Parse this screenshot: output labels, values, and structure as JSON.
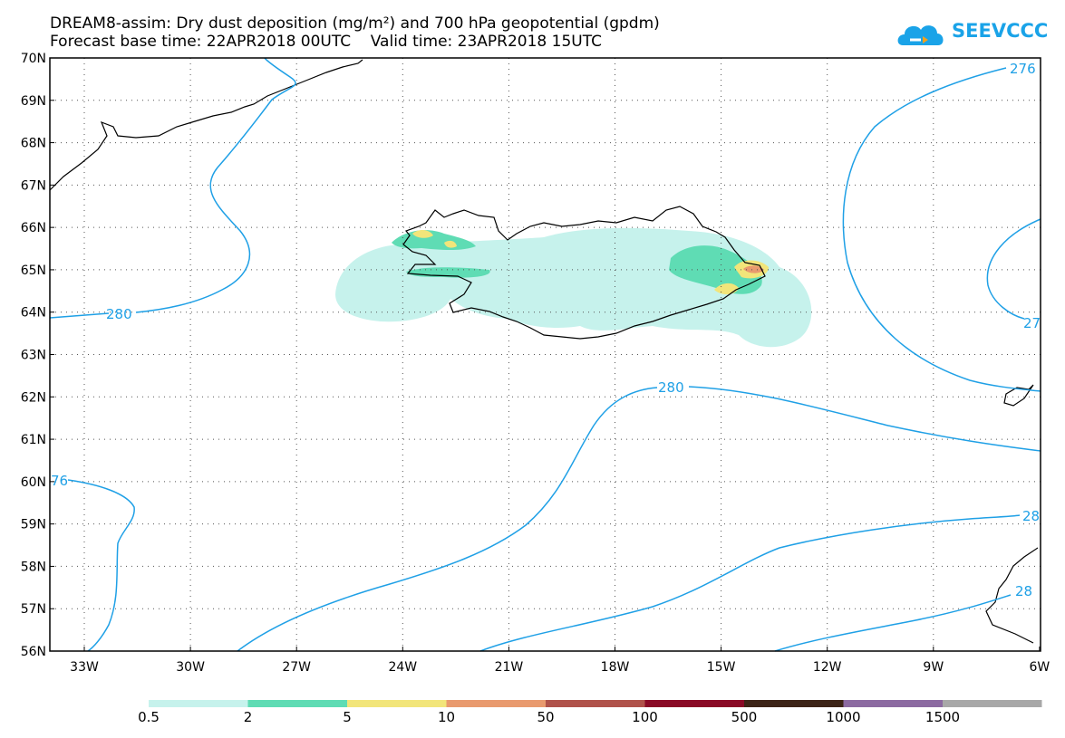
{
  "header": {
    "title_line1": "DREAM8-assim: Dry dust deposition (mg/m²) and 700 hPa geopotential (gpdm)",
    "title_line2": "Forecast base time: 22APR2018 00UTC    Valid time: 23APR2018 15UTC",
    "logo_text": "SEEVCCC"
  },
  "map": {
    "lat_ticks": [
      "70N",
      "69N",
      "68N",
      "67N",
      "66N",
      "65N",
      "64N",
      "63N",
      "62N",
      "61N",
      "60N",
      "59N",
      "58N",
      "57N",
      "56N"
    ],
    "lon_ticks": [
      "33W",
      "30W",
      "27W",
      "24W",
      "21W",
      "18W",
      "15W",
      "12W",
      "9W",
      "6W"
    ],
    "contour_labels": [
      {
        "name": "contour-label-280-west",
        "text": "280"
      },
      {
        "name": "contour-label-280-center",
        "text": "280"
      },
      {
        "name": "contour-label-276-ne",
        "text": "276"
      },
      {
        "name": "contour-label-27-east",
        "text": "27"
      },
      {
        "name": "contour-label-76-west",
        "text": "76"
      },
      {
        "name": "contour-label-28-se",
        "text": "28"
      },
      {
        "name": "contour-label-28-se2",
        "text": "28"
      }
    ],
    "colors": {
      "contour": "#1fa0e6",
      "frame": "#000000",
      "grid": "#555555"
    }
  },
  "colorbar": {
    "labels": [
      "0.5",
      "2",
      "5",
      "10",
      "50",
      "100",
      "500",
      "1000",
      "1500"
    ],
    "colors": [
      "#c6f2ec",
      "#5fdcb4",
      "#f2e57a",
      "#e99a6e",
      "#b0524a",
      "#8a0a26",
      "#3d2417",
      "#8c6aa1",
      "#a8a8a8"
    ]
  }
}
